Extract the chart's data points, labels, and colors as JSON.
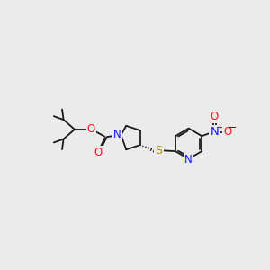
{
  "bg_color": "#ebebeb",
  "bond_color": "#1a1a1a",
  "N_color": "#1414ff",
  "O_color": "#ff1414",
  "S_color": "#b8960a",
  "figsize": [
    3.0,
    3.0
  ],
  "dpi": 100,
  "lw": 1.3,
  "fs": 7.5,
  "xlim": [
    0,
    300
  ],
  "ylim": [
    0,
    300
  ]
}
